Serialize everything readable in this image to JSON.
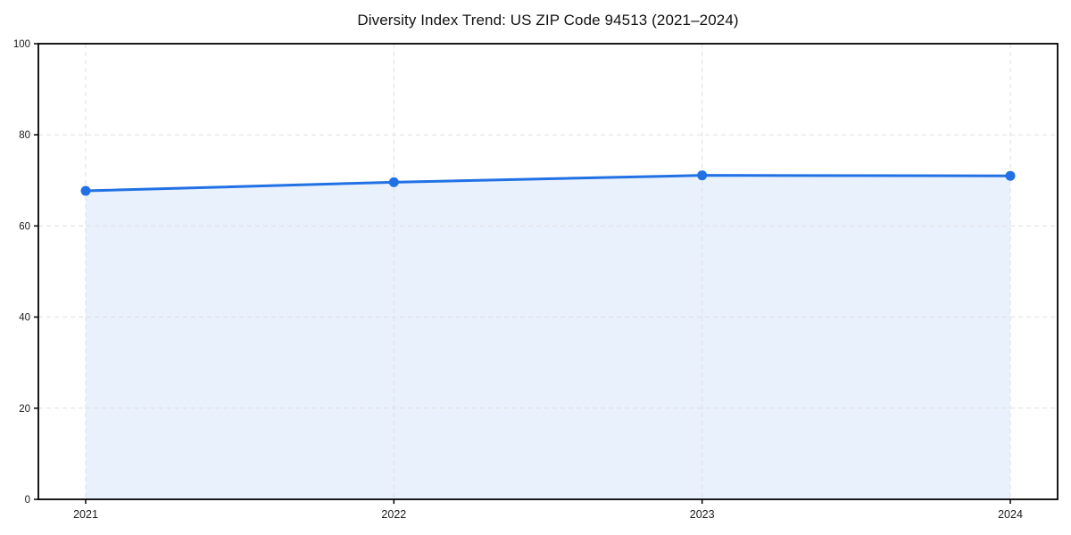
{
  "chart_data": {
    "type": "area",
    "title": "Diversity Index Trend: US ZIP Code 94513 (2021–2024)",
    "categories": [
      "2021",
      "2022",
      "2023",
      "2024"
    ],
    "series": [
      {
        "name": "Diversity Index",
        "values": [
          67.7,
          69.6,
          71.1,
          71.0
        ]
      }
    ],
    "xlabel": "",
    "ylabel": "",
    "ylim": [
      0,
      100
    ],
    "yticks": [
      0,
      20,
      40,
      60,
      80,
      100
    ],
    "grid": true,
    "grid_style": "dashed",
    "legend": false,
    "marker": "circle",
    "colors": {
      "line": "#2171e5",
      "marker": "#2171e5",
      "fill": "#e9f1fc",
      "grid": "#dfdfdf",
      "axis": "#000000",
      "text": "#1a1a1a",
      "background": "#ffffff"
    }
  }
}
